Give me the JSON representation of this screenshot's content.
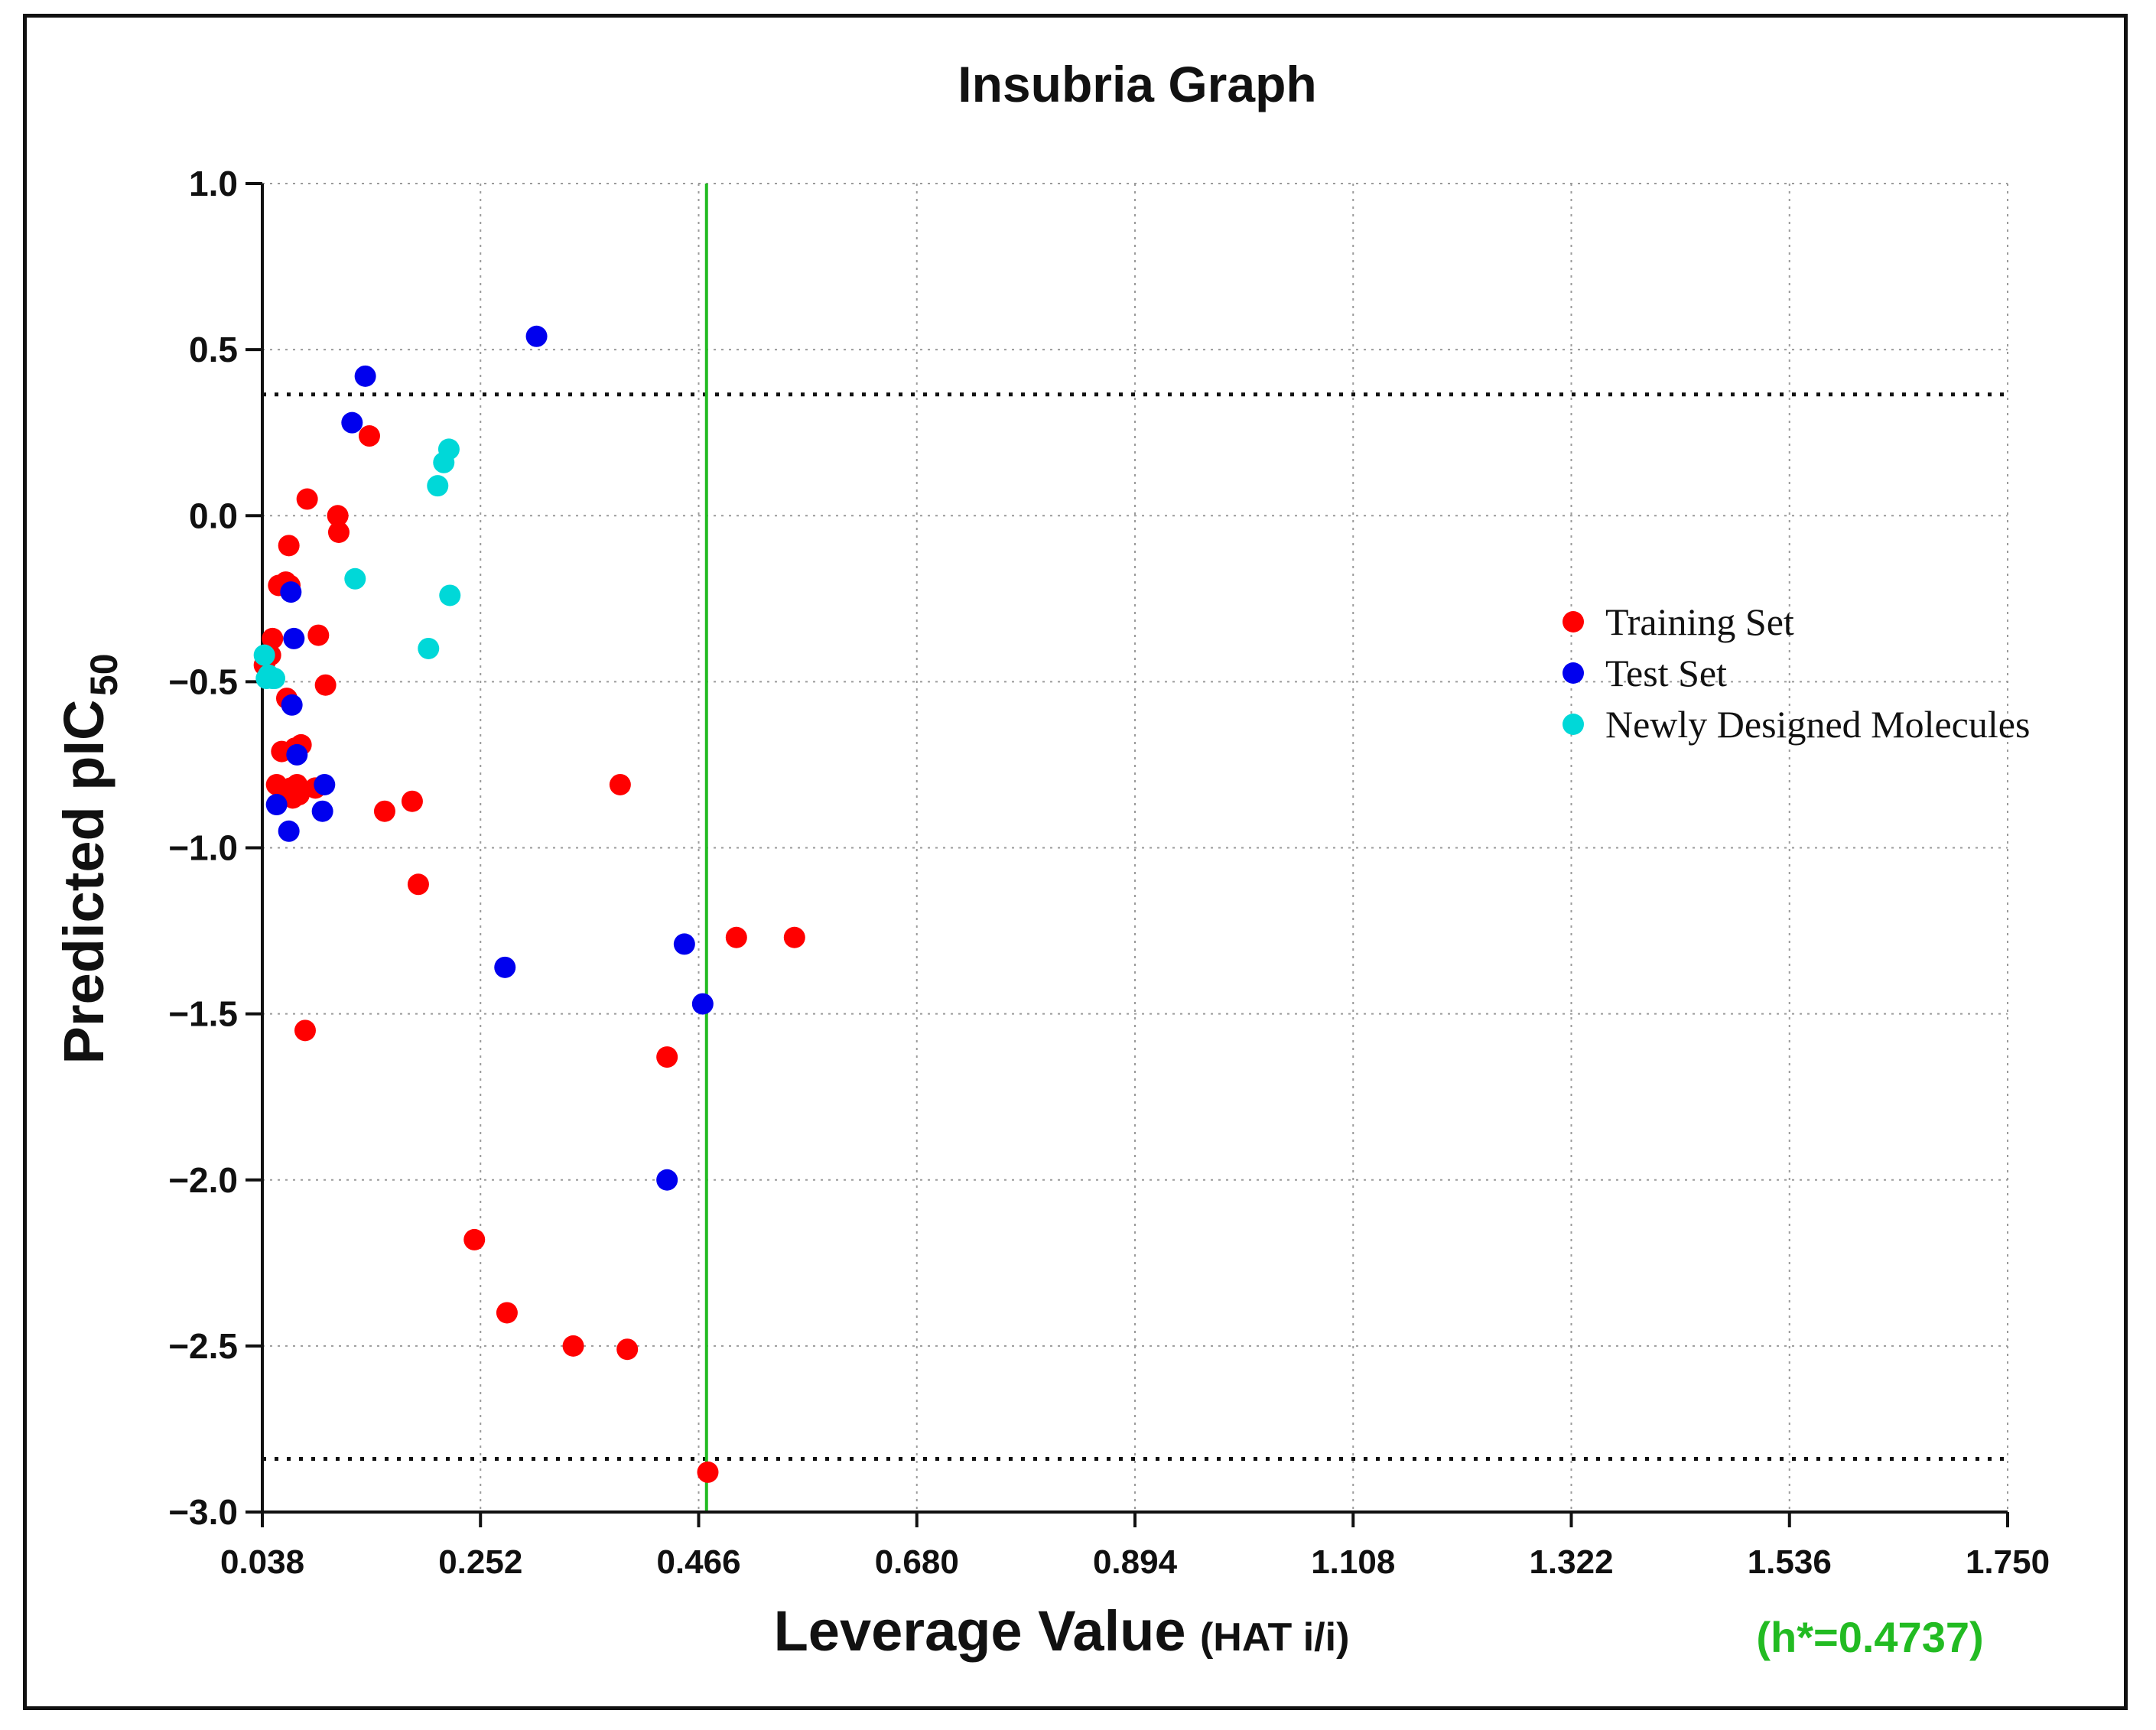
{
  "chart_data": {
    "type": "scatter",
    "title": "Insubria Graph",
    "xlabel": "Leverage Value",
    "xlabel_suffix": "(HAT i/i)",
    "ylabel_main": "Predicted pIC",
    "ylabel_sub": "50",
    "annotation": "(h*=0.4737)",
    "xlim": [
      0.038,
      1.75
    ],
    "ylim": [
      -3.0,
      1.0
    ],
    "x_ticks": [
      "0.038",
      "0.252",
      "0.466",
      "0.680",
      "0.894",
      "1.108",
      "1.322",
      "1.536",
      "1.750"
    ],
    "x_tick_values": [
      0.038,
      0.252,
      0.466,
      0.68,
      0.894,
      1.108,
      1.322,
      1.536,
      1.75
    ],
    "y_ticks": [
      "1.0",
      "0.5",
      "0.0",
      "−0.5",
      "−1.0",
      "−1.5",
      "−2.0",
      "−2.5",
      "−3.0"
    ],
    "y_tick_values": [
      1.0,
      0.5,
      0.0,
      -0.5,
      -1.0,
      -1.5,
      -2.0,
      -2.5,
      -3.0
    ],
    "grid": true,
    "h_star": 0.4737,
    "residual_limits": [
      0.365,
      -2.84
    ],
    "legend_position": "right",
    "colors": {
      "training": "#ff0000",
      "test": "#0000ee",
      "new": "#00d8d8",
      "hstar": "#22bb22",
      "annotation": "#22bb22"
    },
    "series": [
      {
        "name": "Training Set",
        "key": "training",
        "points": [
          [
            0.04,
            -0.45
          ],
          [
            0.046,
            -0.42
          ],
          [
            0.048,
            -0.37
          ],
          [
            0.052,
            -0.81
          ],
          [
            0.054,
            -0.21
          ],
          [
            0.057,
            -0.71
          ],
          [
            0.059,
            -0.83
          ],
          [
            0.061,
            -0.2
          ],
          [
            0.062,
            -0.55
          ],
          [
            0.064,
            -0.09
          ],
          [
            0.065,
            -0.21
          ],
          [
            0.066,
            -0.82
          ],
          [
            0.068,
            -0.85
          ],
          [
            0.07,
            -0.7
          ],
          [
            0.072,
            -0.81
          ],
          [
            0.074,
            -0.84
          ],
          [
            0.076,
            -0.69
          ],
          [
            0.08,
            -1.55
          ],
          [
            0.082,
            0.05
          ],
          [
            0.09,
            -0.82
          ],
          [
            0.093,
            -0.36
          ],
          [
            0.1,
            -0.51
          ],
          [
            0.112,
            0.0
          ],
          [
            0.113,
            -0.05
          ],
          [
            0.143,
            0.24
          ],
          [
            0.158,
            -0.89
          ],
          [
            0.185,
            -0.86
          ],
          [
            0.191,
            -1.11
          ],
          [
            0.246,
            -2.18
          ],
          [
            0.278,
            -2.4
          ],
          [
            0.343,
            -2.5
          ],
          [
            0.396,
            -2.51
          ],
          [
            0.389,
            -0.81
          ],
          [
            0.435,
            -1.63
          ],
          [
            0.475,
            -2.88
          ],
          [
            0.503,
            -1.27
          ],
          [
            0.56,
            -1.27
          ]
        ]
      },
      {
        "name": "Test Set",
        "key": "test",
        "points": [
          [
            0.052,
            -0.87
          ],
          [
            0.064,
            -0.95
          ],
          [
            0.066,
            -0.23
          ],
          [
            0.067,
            -0.57
          ],
          [
            0.069,
            -0.37
          ],
          [
            0.072,
            -0.72
          ],
          [
            0.099,
            -0.81
          ],
          [
            0.097,
            -0.89
          ],
          [
            0.126,
            0.28
          ],
          [
            0.139,
            0.42
          ],
          [
            0.276,
            -1.36
          ],
          [
            0.307,
            0.54
          ],
          [
            0.435,
            -2.0
          ],
          [
            0.452,
            -1.29
          ],
          [
            0.47,
            -1.47
          ]
        ]
      },
      {
        "name": "Newly Designed Molecules",
        "key": "new",
        "points": [
          [
            0.04,
            -0.42
          ],
          [
            0.042,
            -0.49
          ],
          [
            0.044,
            -0.48
          ],
          [
            0.048,
            -0.49
          ],
          [
            0.05,
            -0.49
          ],
          [
            0.129,
            -0.19
          ],
          [
            0.201,
            -0.4
          ],
          [
            0.21,
            0.09
          ],
          [
            0.216,
            0.16
          ],
          [
            0.221,
            0.2
          ],
          [
            0.222,
            -0.24
          ]
        ]
      }
    ]
  }
}
